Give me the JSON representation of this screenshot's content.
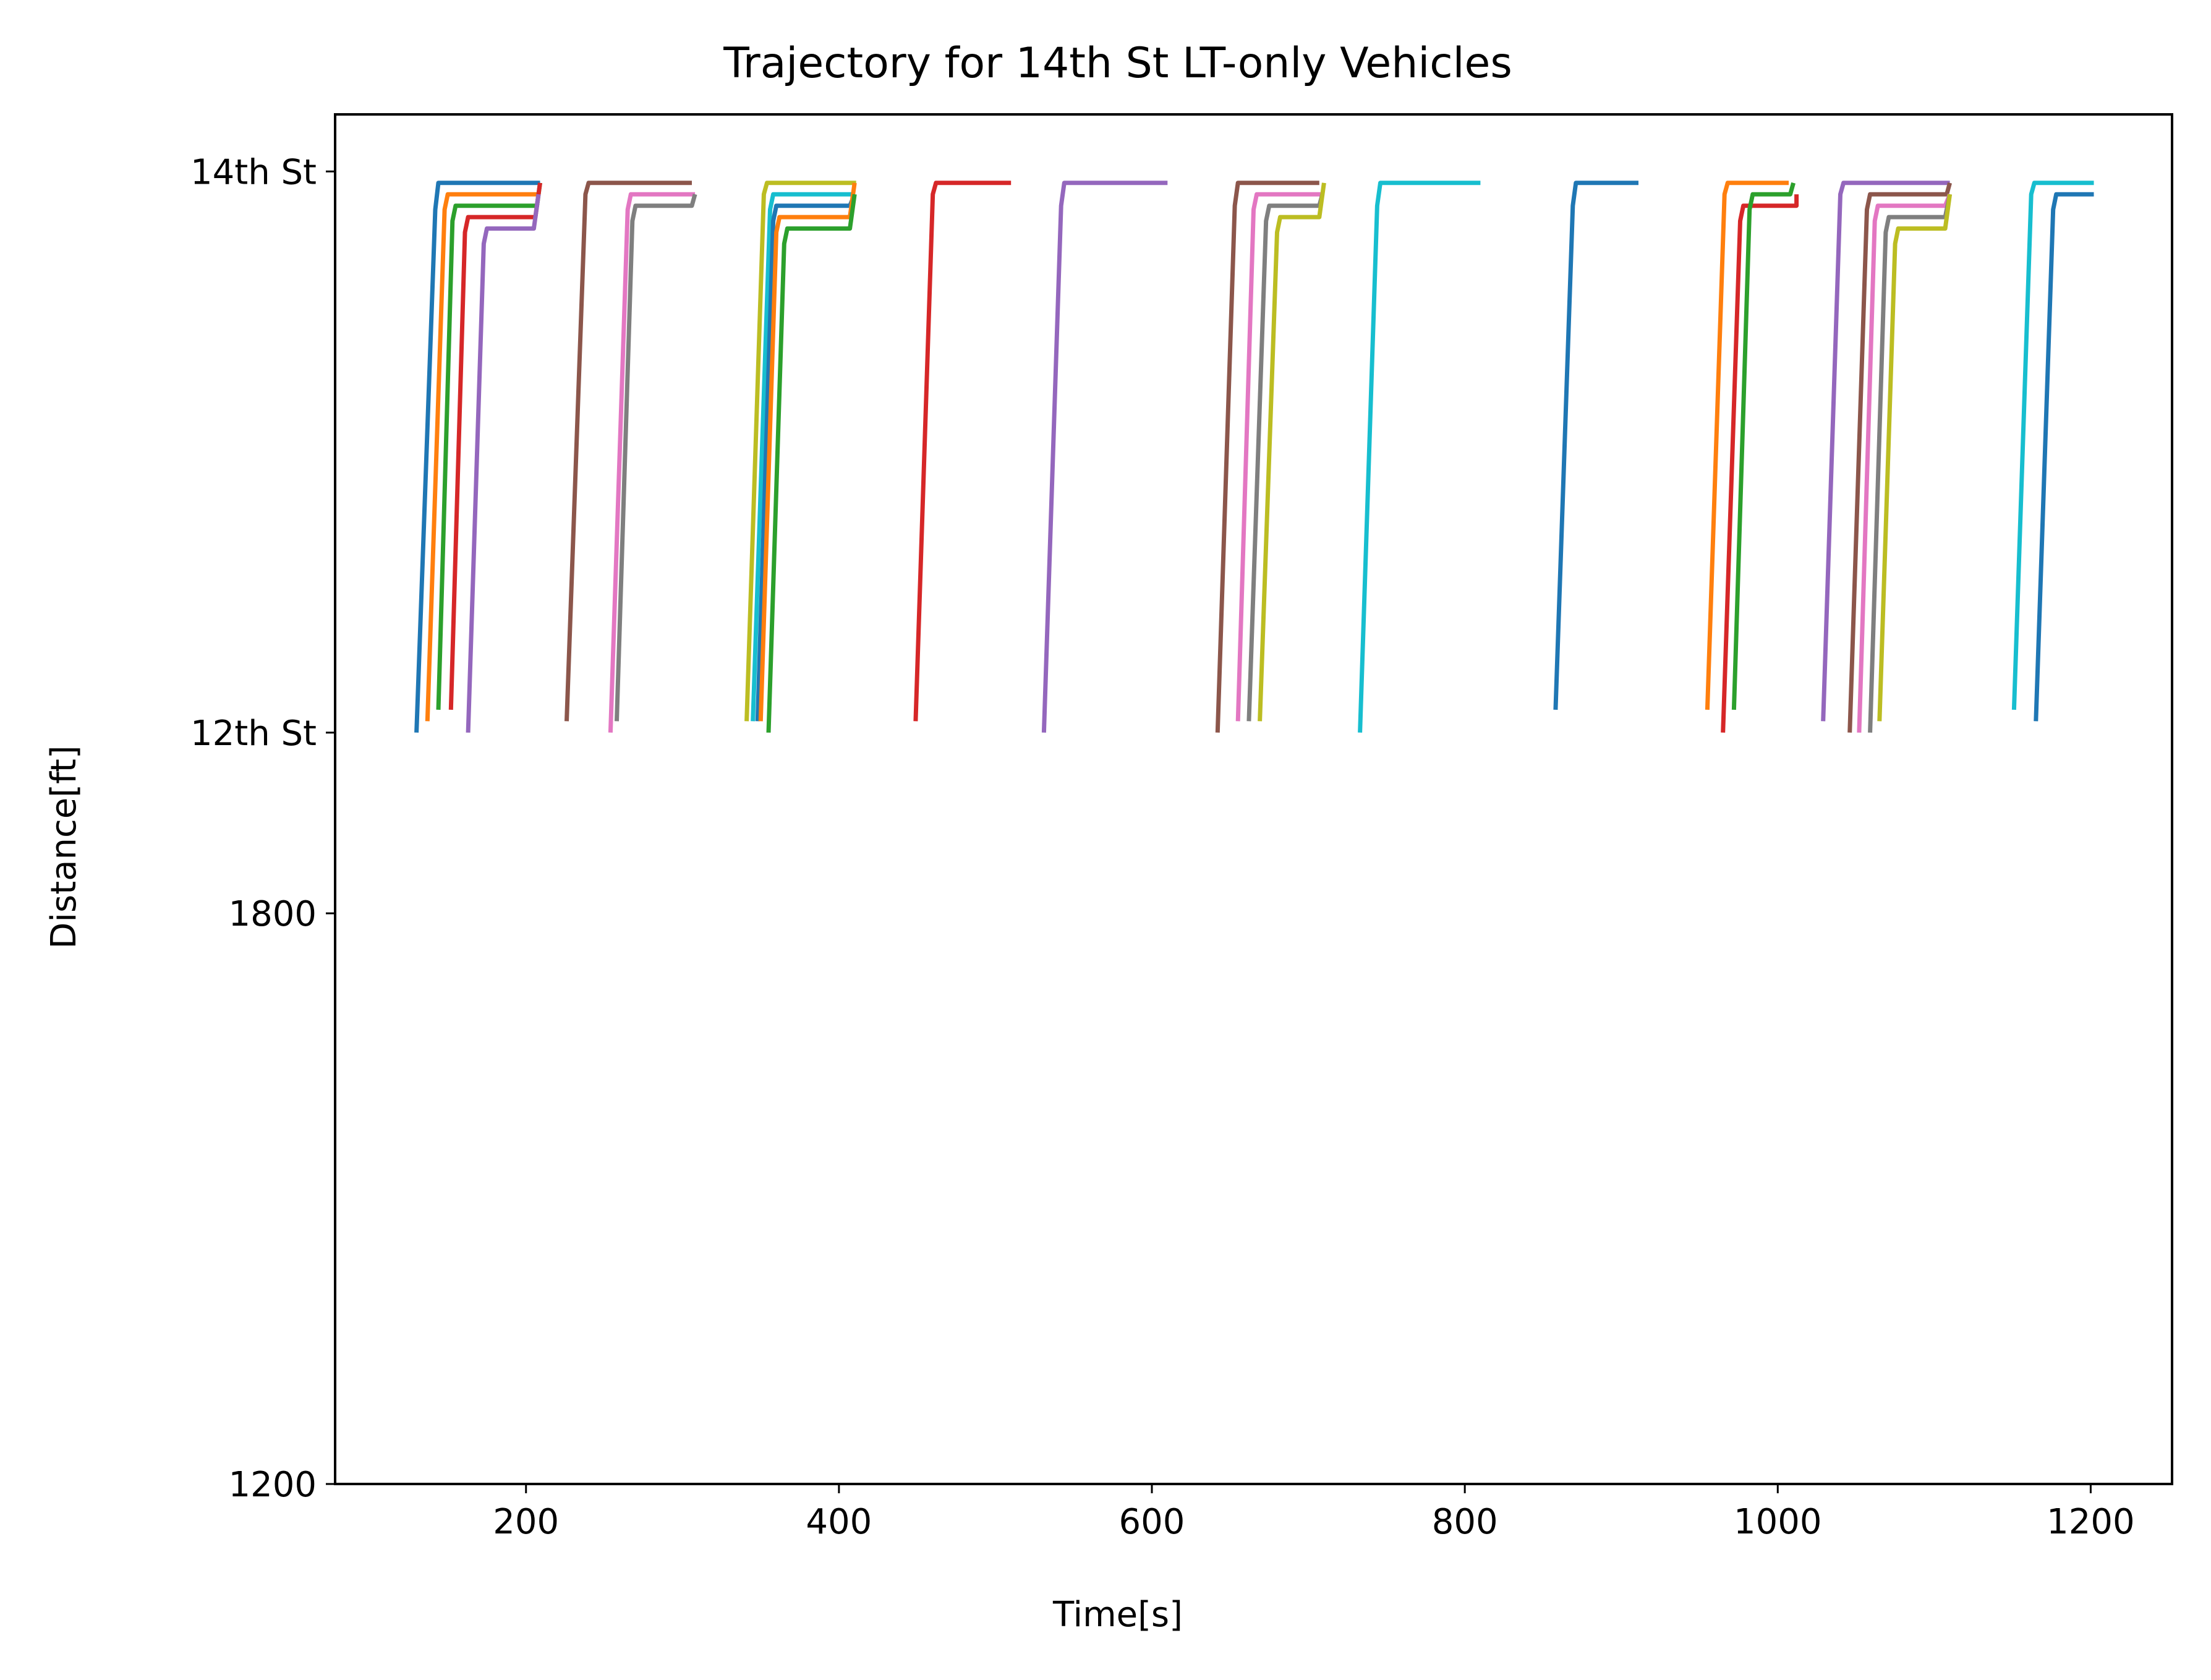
{
  "chart_data": {
    "type": "line",
    "title": "Trajectory for 14th St LT-only Vehicles",
    "xlabel": "Time[s]",
    "ylabel": "Distance[ft]",
    "xlim": [
      78,
      1252
    ],
    "ylim": [
      1200,
      2640
    ],
    "x_ticks": [
      {
        "value": 200,
        "label": "200"
      },
      {
        "value": 400,
        "label": "400"
      },
      {
        "value": 600,
        "label": "600"
      },
      {
        "value": 800,
        "label": "800"
      },
      {
        "value": 1000,
        "label": "1000"
      },
      {
        "value": 1200,
        "label": "1200"
      }
    ],
    "y_ticks": [
      {
        "value": 1200,
        "label": "1200"
      },
      {
        "value": 1800,
        "label": "1800"
      },
      {
        "value": 1990,
        "label": "12th St"
      },
      {
        "value": 2580,
        "label": "14th St"
      }
    ],
    "grid": false,
    "legend": "none",
    "series": [
      {
        "color": "#1f77b4",
        "points": [
          [
            130,
            1990
          ],
          [
            142,
            2540
          ],
          [
            144,
            2568
          ],
          [
            209,
            2568
          ]
        ]
      },
      {
        "color": "#ff7f0e",
        "points": [
          [
            137,
            2002
          ],
          [
            148,
            2540
          ],
          [
            150,
            2556
          ],
          [
            209,
            2556
          ]
        ]
      },
      {
        "color": "#2ca02c",
        "points": [
          [
            144,
            2014
          ],
          [
            153,
            2528
          ],
          [
            155,
            2544
          ],
          [
            207,
            2544
          ],
          [
            209,
            2568
          ]
        ]
      },
      {
        "color": "#d62728",
        "points": [
          [
            152,
            2014
          ],
          [
            161,
            2516
          ],
          [
            163,
            2532
          ],
          [
            206,
            2532
          ],
          [
            209,
            2568
          ]
        ]
      },
      {
        "color": "#9467bd",
        "points": [
          [
            163,
            1990
          ],
          [
            173,
            2504
          ],
          [
            175,
            2520
          ],
          [
            205,
            2520
          ],
          [
            208,
            2556
          ]
        ]
      },
      {
        "color": "#8c564b",
        "points": [
          [
            226,
            2002
          ],
          [
            238,
            2556
          ],
          [
            240,
            2568
          ],
          [
            306,
            2568
          ]
        ]
      },
      {
        "color": "#e377c2",
        "points": [
          [
            254,
            1990
          ],
          [
            265,
            2540
          ],
          [
            267,
            2556
          ],
          [
            308,
            2556
          ]
        ]
      },
      {
        "color": "#7f7f7f",
        "points": [
          [
            258,
            2002
          ],
          [
            268,
            2528
          ],
          [
            270,
            2544
          ],
          [
            306,
            2544
          ],
          [
            308,
            2556
          ]
        ]
      },
      {
        "color": "#bcbd22",
        "points": [
          [
            341,
            2002
          ],
          [
            352,
            2556
          ],
          [
            354,
            2568
          ],
          [
            411,
            2568
          ]
        ]
      },
      {
        "color": "#17becf",
        "points": [
          [
            345,
            2002
          ],
          [
            356,
            2540
          ],
          [
            358,
            2556
          ],
          [
            408,
            2556
          ]
        ]
      },
      {
        "color": "#1f77b4",
        "points": [
          [
            348,
            2002
          ],
          [
            358,
            2528
          ],
          [
            360,
            2544
          ],
          [
            407,
            2544
          ],
          [
            410,
            2556
          ]
        ]
      },
      {
        "color": "#ff7f0e",
        "points": [
          [
            350,
            2002
          ],
          [
            360,
            2516
          ],
          [
            362,
            2532
          ],
          [
            407,
            2532
          ],
          [
            410,
            2568
          ]
        ]
      },
      {
        "color": "#2ca02c",
        "points": [
          [
            355,
            1990
          ],
          [
            365,
            2504
          ],
          [
            367,
            2520
          ],
          [
            407,
            2520
          ],
          [
            410,
            2556
          ]
        ]
      },
      {
        "color": "#d62728",
        "points": [
          [
            449,
            2002
          ],
          [
            460,
            2556
          ],
          [
            462,
            2568
          ],
          [
            510,
            2568
          ]
        ]
      },
      {
        "color": "#9467bd",
        "points": [
          [
            531,
            1990
          ],
          [
            542,
            2544
          ],
          [
            544,
            2568
          ],
          [
            610,
            2568
          ]
        ]
      },
      {
        "color": "#8c564b",
        "points": [
          [
            642,
            1990
          ],
          [
            653,
            2544
          ],
          [
            655,
            2568
          ],
          [
            707,
            2568
          ]
        ]
      },
      {
        "color": "#e377c2",
        "points": [
          [
            655,
            2002
          ],
          [
            665,
            2540
          ],
          [
            667,
            2556
          ],
          [
            708,
            2556
          ]
        ]
      },
      {
        "color": "#7f7f7f",
        "points": [
          [
            662,
            2002
          ],
          [
            673,
            2528
          ],
          [
            675,
            2544
          ],
          [
            707,
            2544
          ],
          [
            709,
            2556
          ]
        ]
      },
      {
        "color": "#bcbd22",
        "points": [
          [
            669,
            2002
          ],
          [
            680,
            2516
          ],
          [
            682,
            2532
          ],
          [
            707,
            2532
          ],
          [
            710,
            2568
          ]
        ]
      },
      {
        "color": "#17becf",
        "points": [
          [
            733,
            1990
          ],
          [
            744,
            2544
          ],
          [
            746,
            2568
          ],
          [
            810,
            2568
          ]
        ]
      },
      {
        "color": "#1f77b4",
        "points": [
          [
            858,
            2014
          ],
          [
            869,
            2544
          ],
          [
            871,
            2568
          ],
          [
            911,
            2568
          ]
        ]
      },
      {
        "color": "#ff7f0e",
        "points": [
          [
            955,
            2014
          ],
          [
            966,
            2556
          ],
          [
            968,
            2568
          ],
          [
            1007,
            2568
          ]
        ]
      },
      {
        "color": "#d62728",
        "points": [
          [
            965,
            1990
          ],
          [
            976,
            2528
          ],
          [
            978,
            2544
          ],
          [
            1012,
            2544
          ],
          [
            1012,
            2556
          ]
        ]
      },
      {
        "color": "#2ca02c",
        "points": [
          [
            972,
            2014
          ],
          [
            982,
            2540
          ],
          [
            984,
            2556
          ],
          [
            1008,
            2556
          ],
          [
            1010,
            2568
          ]
        ]
      },
      {
        "color": "#9467bd",
        "points": [
          [
            1029,
            2002
          ],
          [
            1040,
            2556
          ],
          [
            1042,
            2568
          ],
          [
            1110,
            2568
          ]
        ]
      },
      {
        "color": "#8c564b",
        "points": [
          [
            1046,
            1990
          ],
          [
            1057,
            2540
          ],
          [
            1059,
            2556
          ],
          [
            1108,
            2556
          ],
          [
            1110,
            2568
          ]
        ]
      },
      {
        "color": "#e377c2",
        "points": [
          [
            1052,
            1990
          ],
          [
            1062,
            2528
          ],
          [
            1064,
            2544
          ],
          [
            1107,
            2544
          ],
          [
            1110,
            2556
          ]
        ]
      },
      {
        "color": "#7f7f7f",
        "points": [
          [
            1059,
            1990
          ],
          [
            1069,
            2516
          ],
          [
            1071,
            2532
          ],
          [
            1107,
            2532
          ],
          [
            1110,
            2556
          ]
        ]
      },
      {
        "color": "#bcbd22",
        "points": [
          [
            1065,
            2002
          ],
          [
            1075,
            2504
          ],
          [
            1077,
            2520
          ],
          [
            1107,
            2520
          ],
          [
            1110,
            2556
          ]
        ]
      },
      {
        "color": "#17becf",
        "points": [
          [
            1151,
            2014
          ],
          [
            1162,
            2556
          ],
          [
            1164,
            2568
          ],
          [
            1202,
            2568
          ]
        ]
      },
      {
        "color": "#1f77b4",
        "points": [
          [
            1165,
            2002
          ],
          [
            1176,
            2540
          ],
          [
            1178,
            2556
          ],
          [
            1202,
            2556
          ]
        ]
      }
    ]
  }
}
